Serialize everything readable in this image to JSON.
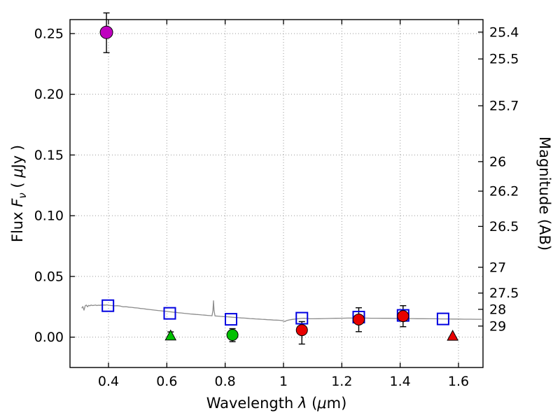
{
  "chart_data": {
    "type": "scatter",
    "title": "",
    "xlabel": "Wavelength λ (μm)",
    "ylabel_left": "Flux Fν ( μJy )",
    "ylabel_right": "Magnitude (AB)",
    "xlabel_parts": [
      {
        "text": "Wavelength  ",
        "style": "normal"
      },
      {
        "text": "λ",
        "style": "italic"
      },
      {
        "text": " (",
        "style": "normal"
      },
      {
        "text": "μ",
        "style": "italic"
      },
      {
        "text": "m)",
        "style": "normal"
      }
    ],
    "ylabel_left_parts": [
      {
        "text": "Flux  ",
        "style": "normal"
      },
      {
        "text": "F",
        "style": "italic"
      },
      {
        "text": "ν",
        "style": "sub"
      },
      {
        "text": "  ( ",
        "style": "normal"
      },
      {
        "text": "μ",
        "style": "italic"
      },
      {
        "text": "Jy )",
        "style": "normal"
      }
    ],
    "ylabel_right_parts": [
      {
        "text": "Magnitude (AB)",
        "style": "normal"
      }
    ],
    "xlim": [
      0.268,
      1.684
    ],
    "ylim": [
      -0.025,
      0.2615
    ],
    "ab_zeropoint": 23.9,
    "grid": true,
    "x_ticks": [
      "0.4",
      "0.6",
      "0.8",
      "1",
      "1.2",
      "1.4",
      "1.6"
    ],
    "y_ticks_left": [
      "0.00",
      "0.05",
      "0.10",
      "0.15",
      "0.20",
      "0.25"
    ],
    "y_ticks_right": [
      "25.4",
      "25.5",
      "25.7",
      "26",
      "26.2",
      "26.5",
      "27",
      "27.5",
      "28",
      "29"
    ],
    "style": {
      "background": "#ffffff",
      "frame_color": "#000000",
      "tick_color": "#000000",
      "grid_color": "#999999",
      "errorbar_color": "#000000",
      "spectrum_color": "#8c8c8c"
    },
    "spectrum": {
      "name": "model-spectrum",
      "color": "#8c8c8c",
      "x": [
        0.308,
        0.312,
        0.316,
        0.32,
        0.324,
        0.328,
        0.332,
        0.336,
        0.34,
        0.345,
        0.35,
        0.355,
        0.36,
        0.365,
        0.37,
        0.375,
        0.38,
        0.385,
        0.39,
        0.395,
        0.4,
        0.41,
        0.42,
        0.43,
        0.44,
        0.45,
        0.46,
        0.47,
        0.48,
        0.49,
        0.5,
        0.51,
        0.52,
        0.53,
        0.54,
        0.55,
        0.56,
        0.57,
        0.58,
        0.59,
        0.6,
        0.61,
        0.62,
        0.63,
        0.64,
        0.65,
        0.66,
        0.67,
        0.68,
        0.69,
        0.7,
        0.71,
        0.72,
        0.73,
        0.74,
        0.75,
        0.755,
        0.758,
        0.76,
        0.762,
        0.765,
        0.775,
        0.785,
        0.795,
        0.805,
        0.815,
        0.825,
        0.835,
        0.845,
        0.855,
        0.865,
        0.875,
        0.885,
        0.895,
        0.905,
        0.915,
        0.925,
        0.935,
        0.945,
        0.955,
        0.965,
        0.975,
        0.985,
        0.995,
        1.0,
        1.005,
        1.01,
        1.02,
        1.03,
        1.04,
        1.05,
        1.06,
        1.07,
        1.08,
        1.09,
        1.1,
        1.12,
        1.14,
        1.16,
        1.18,
        1.2,
        1.22,
        1.24,
        1.26,
        1.28,
        1.3,
        1.32,
        1.34,
        1.36,
        1.38,
        1.4,
        1.42,
        1.44,
        1.46,
        1.48,
        1.5,
        1.52,
        1.54,
        1.56,
        1.58,
        1.6,
        1.62,
        1.64,
        1.66,
        1.68
      ],
      "y": [
        0.0238,
        0.0252,
        0.0222,
        0.0258,
        0.0264,
        0.025,
        0.0262,
        0.0258,
        0.0264,
        0.026,
        0.0262,
        0.0265,
        0.026,
        0.0263,
        0.0262,
        0.0264,
        0.0263,
        0.0265,
        0.0264,
        0.0266,
        0.0263,
        0.026,
        0.0258,
        0.0259,
        0.0256,
        0.025,
        0.0251,
        0.0247,
        0.0245,
        0.0242,
        0.024,
        0.0236,
        0.0234,
        0.023,
        0.0228,
        0.0225,
        0.0222,
        0.0219,
        0.0217,
        0.0214,
        0.0212,
        0.0209,
        0.0206,
        0.0204,
        0.0201,
        0.0199,
        0.0196,
        0.0194,
        0.0191,
        0.0189,
        0.0187,
        0.0185,
        0.0183,
        0.0181,
        0.0179,
        0.0177,
        0.0176,
        0.022,
        0.03,
        0.022,
        0.0175,
        0.0173,
        0.0171,
        0.0169,
        0.0168,
        0.0166,
        0.0164,
        0.0162,
        0.016,
        0.0158,
        0.0157,
        0.0155,
        0.0153,
        0.0152,
        0.015,
        0.0149,
        0.0147,
        0.0146,
        0.0144,
        0.0143,
        0.0141,
        0.014,
        0.0139,
        0.0136,
        0.0133,
        0.0129,
        0.0136,
        0.0142,
        0.0146,
        0.0149,
        0.0152,
        0.0154,
        0.0156,
        0.0154,
        0.0152,
        0.0151,
        0.0152,
        0.0153,
        0.0154,
        0.0155,
        0.0156,
        0.0157,
        0.0157,
        0.0157,
        0.0157,
        0.0156,
        0.0156,
        0.0155,
        0.0155,
        0.0154,
        0.0154,
        0.0153,
        0.0153,
        0.0152,
        0.0152,
        0.0151,
        0.0151,
        0.015,
        0.015,
        0.0149,
        0.0149,
        0.0148,
        0.0148,
        0.0147,
        0.0147
      ]
    },
    "photometry": [
      {
        "name": "blue-open-squares",
        "marker": "square-open",
        "color": "#0000e0",
        "size": 16,
        "points": [
          {
            "x": 0.398,
            "y": 0.0259
          },
          {
            "x": 0.61,
            "y": 0.0196
          },
          {
            "x": 0.82,
            "y": 0.0147
          },
          {
            "x": 1.063,
            "y": 0.0156
          },
          {
            "x": 1.258,
            "y": 0.0165
          },
          {
            "x": 1.41,
            "y": 0.0179
          },
          {
            "x": 1.547,
            "y": 0.015
          }
        ]
      },
      {
        "name": "green-triangle-limit",
        "marker": "triangle",
        "color": "#00c000",
        "size": 15,
        "points": [
          {
            "x": 0.613,
            "y": 0.0008,
            "err_hi": 0.0035
          }
        ]
      },
      {
        "name": "red-triangle-limit",
        "marker": "triangle",
        "color": "#e80000",
        "size": 15,
        "points": [
          {
            "x": 1.58,
            "y": 0.0006
          }
        ]
      },
      {
        "name": "magenta-circle",
        "marker": "circle",
        "color": "#bf00bf",
        "size": 9,
        "points": [
          {
            "x": 0.393,
            "y": 0.251,
            "err_lo": 0.0167,
            "err_hi": 0.016
          }
        ]
      },
      {
        "name": "green-circle",
        "marker": "circle",
        "color": "#00c000",
        "size": 8,
        "points": [
          {
            "x": 0.825,
            "y": 0.0018,
            "err_lo": 0.0055,
            "err_hi": 0.0052
          }
        ]
      },
      {
        "name": "red-circles",
        "marker": "circle",
        "color": "#e80000",
        "size": 8,
        "points": [
          {
            "x": 1.063,
            "y": 0.0058,
            "err_lo": 0.0115,
            "err_hi": 0.007
          },
          {
            "x": 1.258,
            "y": 0.0145,
            "err_lo": 0.01,
            "err_hi": 0.0097
          },
          {
            "x": 1.41,
            "y": 0.0173,
            "err_lo": 0.0087,
            "err_hi": 0.0086
          }
        ]
      }
    ]
  }
}
